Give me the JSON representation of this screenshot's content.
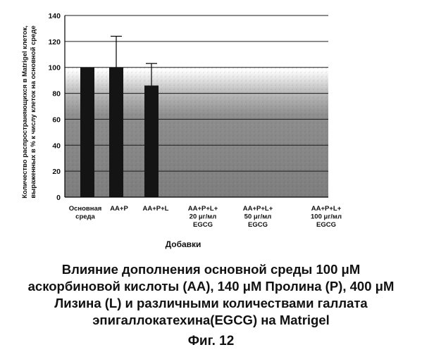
{
  "chart_data": {
    "type": "bar",
    "ylabel_lines": [
      "Количество распространяющихся в Matrigel клеток,",
      "выраженных в % к числу клеток на основной среде"
    ],
    "xlabel": "Добавки",
    "ylim": [
      0,
      140
    ],
    "yticks": [
      0,
      20,
      40,
      60,
      80,
      100,
      120,
      140
    ],
    "grid": true,
    "categories": [
      {
        "lines": [
          "Основная",
          "среда"
        ]
      },
      {
        "lines": [
          "AA+P"
        ]
      },
      {
        "lines": [
          "AA+P+L"
        ]
      },
      {
        "lines": [
          "AA+P+L+",
          "20 μг/мл",
          "EGCG"
        ]
      },
      {
        "lines": [
          "AA+P+L+",
          "50 μг/мл",
          "EGCG"
        ]
      },
      {
        "lines": [
          "AA+P+L+",
          "100 μг/мл",
          "EGCG"
        ]
      }
    ],
    "values": [
      100,
      100,
      86,
      null,
      null,
      null
    ],
    "errors": [
      null,
      24,
      17,
      null,
      null,
      null
    ],
    "bar_color": "#141414",
    "plot_background": "#8a8a8a"
  },
  "caption_lines": [
    "Влияние дополнения основной среды 100 μM",
    "аскорбиновой кислоты (АА), 140 μM Пролина (Р), 400 μM",
    "Лизина (L) и различными количествами галлата",
    "эпигаллокатехина(EGCG) на Matrigel"
  ],
  "figure_label": "Фиг. 12"
}
